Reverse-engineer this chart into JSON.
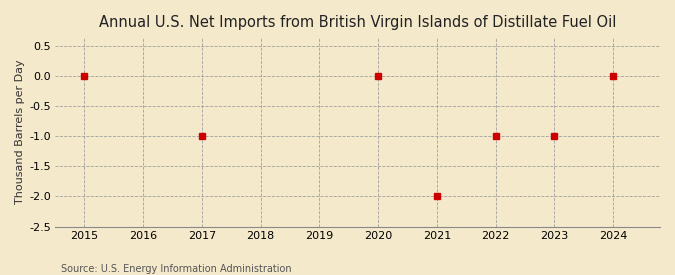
{
  "title": "Annual U.S. Net Imports from British Virgin Islands of Distillate Fuel Oil",
  "ylabel": "Thousand Barrels per Day",
  "source": "Source: U.S. Energy Information Administration",
  "background_color": "#f5e9cc",
  "plot_bg_color": "#f5e9cc",
  "x_data": [
    2015,
    2017,
    2020,
    2021,
    2022,
    2023,
    2024
  ],
  "y_data": [
    0,
    -1,
    0,
    -2,
    -1,
    -1,
    0
  ],
  "marker_color": "#cc0000",
  "marker_size": 4,
  "xlim": [
    2014.5,
    2024.8
  ],
  "ylim": [
    -2.5,
    0.65
  ],
  "xticks": [
    2015,
    2016,
    2017,
    2018,
    2019,
    2020,
    2021,
    2022,
    2023,
    2024
  ],
  "yticks": [
    0.5,
    0.0,
    -0.5,
    -1.0,
    -1.5,
    -2.0,
    -2.5
  ],
  "title_fontsize": 10.5,
  "label_fontsize": 8,
  "tick_fontsize": 8,
  "source_fontsize": 7
}
